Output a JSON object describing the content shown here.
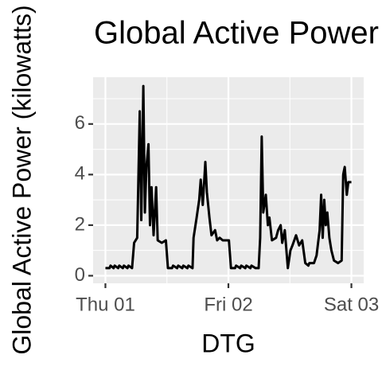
{
  "chart_data": {
    "type": "line",
    "title": "Global Active Power",
    "x_label": "DTG",
    "y_label": "Global Active Power (kilowatts)",
    "x": [
      0,
      0.8,
      1.0,
      1.6,
      1.8,
      2.5,
      2.7,
      3.4,
      3.6,
      4.3,
      4.5,
      5.2,
      5.6,
      6.2,
      6.7,
      7.0,
      7.4,
      7.7,
      8.0,
      8.4,
      8.7,
      9.0,
      9.4,
      9.9,
      10.2,
      11.0,
      11.8,
      12.2,
      13.0,
      13.2,
      14.0,
      14.2,
      15.0,
      15.2,
      16.0,
      16.2,
      17.0,
      17.2,
      17.8,
      18.3,
      18.6,
      19.0,
      19.5,
      19.8,
      20.3,
      20.7,
      21.4,
      21.8,
      22.3,
      22.9,
      24.1,
      24.5,
      25.3,
      25.5,
      26.3,
      26.5,
      27.3,
      27.5,
      28.3,
      28.5,
      29.3,
      29.9,
      30.2,
      30.5,
      30.8,
      31.3,
      31.7,
      32.0,
      32.5,
      33.3,
      33.7,
      34.2,
      34.5,
      35.0,
      35.6,
      36.1,
      36.5,
      37.2,
      37.8,
      38.4,
      39.0,
      39.6,
      39.8,
      40.7,
      41.2,
      41.8,
      42.1,
      42.4,
      42.7,
      43.0,
      43.3,
      43.7,
      44.1,
      44.6,
      45.4,
      46.1,
      46.4,
      46.7,
      47.1,
      47.4,
      48.0
    ],
    "series": [
      {
        "name": "Global Active Power",
        "color": "#000000",
        "values": [
          0.3,
          0.3,
          0.4,
          0.3,
          0.4,
          0.3,
          0.4,
          0.3,
          0.4,
          0.3,
          0.4,
          0.3,
          1.3,
          1.5,
          6.5,
          2.2,
          7.5,
          2.5,
          4.3,
          5.2,
          2.0,
          3.5,
          1.6,
          3.5,
          1.4,
          1.3,
          1.4,
          0.3,
          0.3,
          0.4,
          0.3,
          0.4,
          0.3,
          0.4,
          0.3,
          0.4,
          0.3,
          1.5,
          2.3,
          3.0,
          3.8,
          2.8,
          4.5,
          3.3,
          2.3,
          1.6,
          1.8,
          1.4,
          1.5,
          1.4,
          1.4,
          0.3,
          0.3,
          0.4,
          0.3,
          0.4,
          0.3,
          0.4,
          0.3,
          0.4,
          0.3,
          0.3,
          1.5,
          5.5,
          2.5,
          3.2,
          2.0,
          2.3,
          1.4,
          1.5,
          1.8,
          2.0,
          1.3,
          1.8,
          0.3,
          1.0,
          1.2,
          1.6,
          1.2,
          1.4,
          0.5,
          0.4,
          0.5,
          0.5,
          0.8,
          1.8,
          3.2,
          1.5,
          3.0,
          2.0,
          2.5,
          1.5,
          1.0,
          0.6,
          0.5,
          0.6,
          4.0,
          4.3,
          3.2,
          3.7,
          3.7
        ]
      }
    ],
    "xlim": [
      -2.4,
      50.4
    ],
    "xticks": [
      {
        "value": 0,
        "label": "Thu 01"
      },
      {
        "value": 24,
        "label": "Fri 02"
      },
      {
        "value": 48,
        "label": "Sat 03"
      }
    ],
    "xminor": [
      12,
      36
    ],
    "ylim": [
      -0.3,
      7.85
    ],
    "yticks": [
      0,
      2,
      4,
      6
    ],
    "yminor": [
      1,
      3,
      5,
      7
    ],
    "grid": true
  }
}
